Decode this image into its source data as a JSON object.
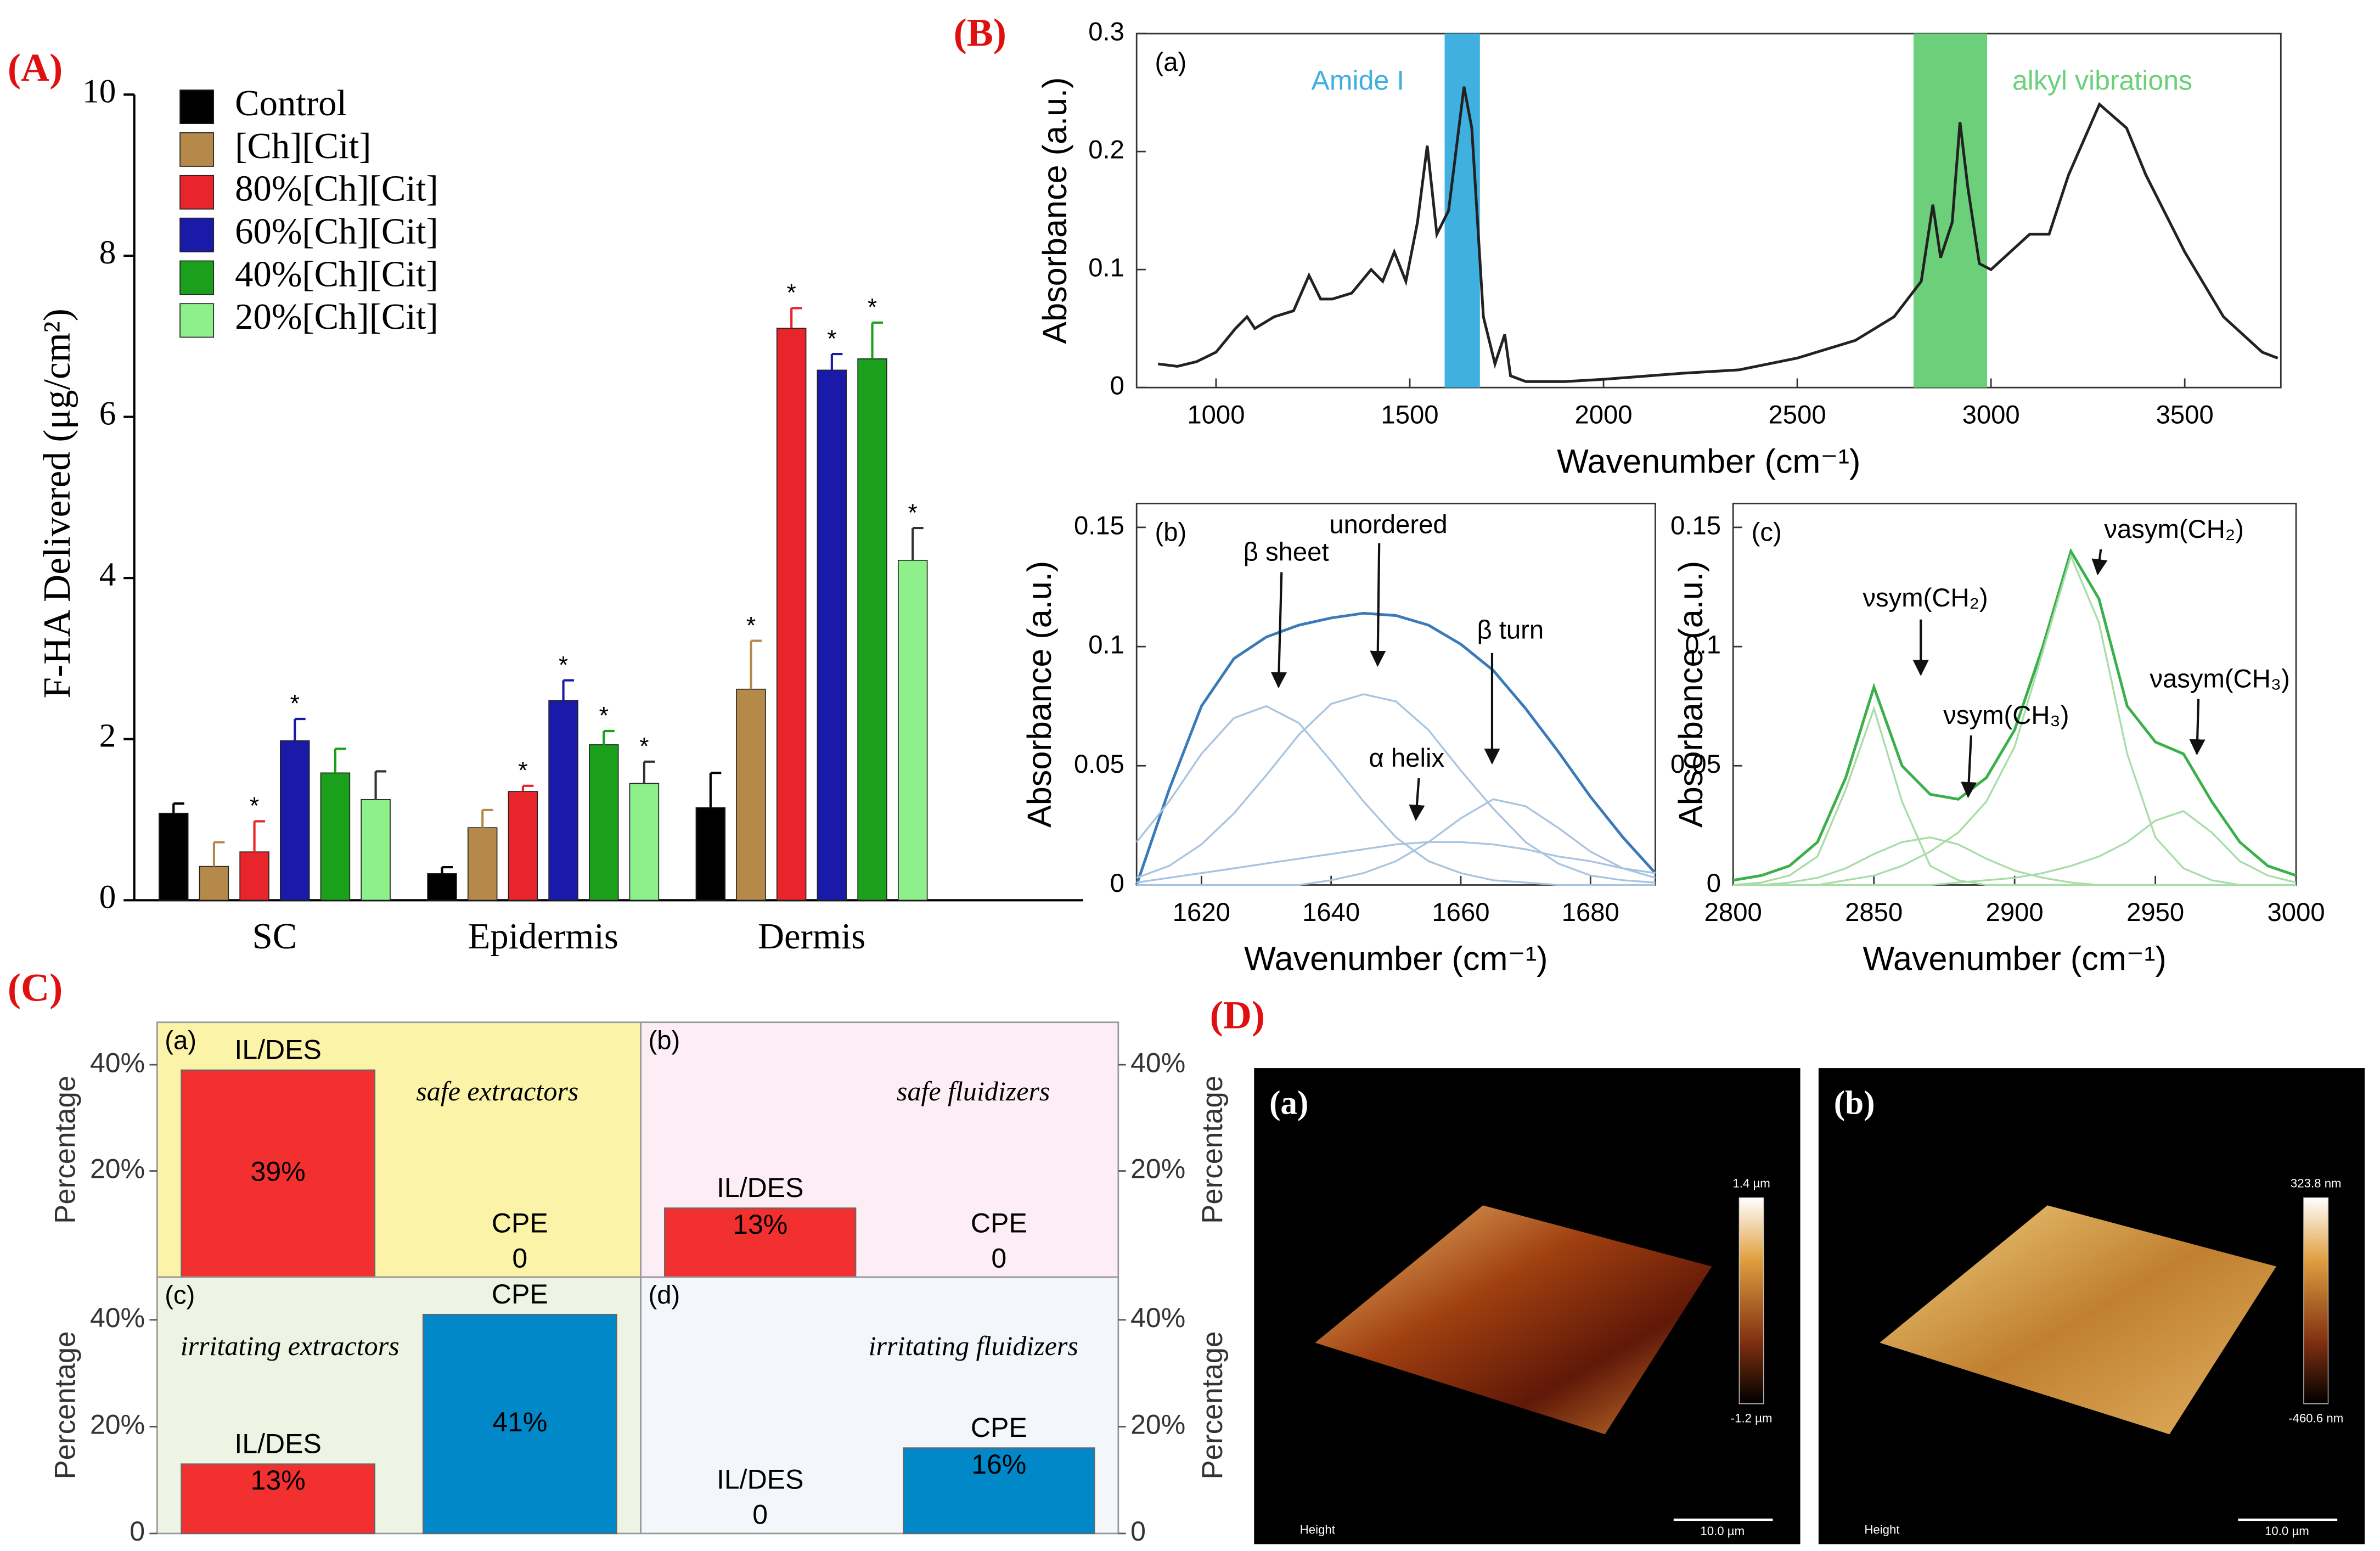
{
  "panel_labels": [
    "(A)",
    "(B)",
    "(C)",
    "(D)"
  ],
  "chart_data": [
    {
      "type": "bar",
      "y_label": "F-HA Delivered (μg/cm²)",
      "categories": [
        "SC",
        "Epidermis",
        "Dermis"
      ],
      "ylim": [
        0,
        10
      ],
      "yticks": [
        0,
        2,
        4,
        6,
        8,
        10
      ],
      "series": [
        {
          "name": "Control",
          "color": "#000000",
          "values": [
            1.08,
            0.33,
            1.15
          ],
          "errors": [
            0.12,
            0.08,
            0.43
          ],
          "significance": [
            null,
            null,
            null
          ]
        },
        {
          "name": "[Ch][Cit]",
          "color": "#b5894a",
          "values": [
            0.42,
            0.9,
            2.62
          ],
          "errors": [
            0.3,
            0.22,
            0.6
          ],
          "significance": [
            null,
            null,
            "*"
          ]
        },
        {
          "name": "80%[Ch][Cit]",
          "color": "#e8252a",
          "values": [
            0.6,
            1.35,
            7.1
          ],
          "errors": [
            0.38,
            0.07,
            0.25
          ],
          "significance": [
            "*",
            "*",
            "*"
          ]
        },
        {
          "name": "60%[Ch][Cit]",
          "color": "#1a1aa8",
          "values": [
            1.98,
            2.48,
            6.58
          ],
          "errors": [
            0.27,
            0.25,
            0.2
          ],
          "significance": [
            "*",
            "*",
            "*"
          ]
        },
        {
          "name": "40%[Ch][Cit]",
          "color": "#1aa01a",
          "values": [
            1.58,
            1.93,
            6.72
          ],
          "errors": [
            0.3,
            0.17,
            0.45
          ],
          "significance": [
            null,
            "*",
            "*"
          ]
        },
        {
          "name": "20%[Ch][Cit]",
          "color": "#8ef08a",
          "values": [
            1.25,
            1.45,
            4.22
          ],
          "errors": [
            0.35,
            0.27,
            0.4
          ],
          "significance": [
            null,
            "*",
            "*"
          ]
        }
      ]
    },
    {
      "type": "line",
      "tag": "(a)",
      "x_label": "Wavenumber (cm⁻¹)",
      "y_label": "Absorbance (a.u.)",
      "xlim": [
        795,
        3748
      ],
      "ylim": [
        0,
        0.3
      ],
      "xticks": [
        1000,
        1500,
        2000,
        2500,
        3000,
        3500
      ],
      "yticks": [
        0,
        0.1,
        0.2,
        0.3
      ],
      "bands": [
        {
          "label": "Amide I",
          "range": [
            1590,
            1681
          ],
          "color": "#3fb0e0"
        },
        {
          "label": "alkyl vibrations",
          "range": [
            2800,
            2990
          ],
          "color": "#6ccf7a"
        }
      ],
      "x": [
        850,
        900,
        950,
        1000,
        1050,
        1080,
        1100,
        1150,
        1200,
        1240,
        1270,
        1300,
        1350,
        1400,
        1430,
        1460,
        1490,
        1520,
        1545,
        1570,
        1600,
        1640,
        1660,
        1690,
        1720,
        1745,
        1760,
        1800,
        1900,
        2000,
        2200,
        2350,
        2500,
        2650,
        2750,
        2820,
        2850,
        2870,
        2900,
        2920,
        2940,
        2970,
        3000,
        3050,
        3100,
        3150,
        3200,
        3280,
        3350,
        3400,
        3500,
        3600,
        3700,
        3740
      ],
      "series": [
        {
          "color": "#222222",
          "values": [
            0.02,
            0.018,
            0.022,
            0.03,
            0.05,
            0.06,
            0.05,
            0.06,
            0.065,
            0.095,
            0.075,
            0.075,
            0.08,
            0.1,
            0.09,
            0.115,
            0.09,
            0.14,
            0.205,
            0.13,
            0.15,
            0.255,
            0.22,
            0.06,
            0.02,
            0.045,
            0.01,
            0.005,
            0.005,
            0.007,
            0.012,
            0.015,
            0.025,
            0.04,
            0.06,
            0.09,
            0.155,
            0.11,
            0.14,
            0.225,
            0.17,
            0.105,
            0.1,
            0.115,
            0.13,
            0.13,
            0.18,
            0.24,
            0.22,
            0.18,
            0.115,
            0.06,
            0.03,
            0.025
          ]
        }
      ]
    },
    {
      "type": "line",
      "tag": "(b)",
      "x_label": "Wavenumber (cm⁻¹)",
      "y_label": "Absorbance (a.u.)",
      "xlim": [
        1610,
        1690
      ],
      "ylim": [
        0,
        0.16
      ],
      "xticks": [
        1620,
        1640,
        1660,
        1680
      ],
      "yticks": [
        0,
        0.05,
        0.1,
        0.15
      ],
      "annotations": [
        "β sheet",
        "unordered",
        "β turn",
        "α helix"
      ],
      "x": [
        1610,
        1615,
        1620,
        1625,
        1630,
        1635,
        1640,
        1645,
        1650,
        1655,
        1660,
        1665,
        1670,
        1675,
        1680,
        1685,
        1690
      ],
      "series": [
        {
          "color": "#3a7ab8",
          "values": [
            0.0,
            0.04,
            0.075,
            0.095,
            0.104,
            0.109,
            0.112,
            0.114,
            0.113,
            0.109,
            0.101,
            0.09,
            0.074,
            0.056,
            0.037,
            0.02,
            0.005
          ]
        },
        {
          "color": "#a8c4e0",
          "values": [
            0.018,
            0.035,
            0.055,
            0.07,
            0.075,
            0.068,
            0.052,
            0.035,
            0.02,
            0.01,
            0.005,
            0.002,
            0.001,
            0,
            0,
            0,
            0
          ]
        },
        {
          "color": "#a8c4e0",
          "values": [
            0.003,
            0.008,
            0.017,
            0.03,
            0.046,
            0.063,
            0.076,
            0.08,
            0.077,
            0.065,
            0.048,
            0.032,
            0.018,
            0.009,
            0.004,
            0.002,
            0.001
          ]
        },
        {
          "color": "#a8c4e0",
          "values": [
            0,
            0,
            0,
            0,
            0,
            0,
            0.002,
            0.005,
            0.01,
            0.018,
            0.028,
            0.036,
            0.033,
            0.024,
            0.014,
            0.007,
            0.003
          ]
        },
        {
          "color": "#a8c4e0",
          "values": [
            0.001,
            0.003,
            0.005,
            0.007,
            0.009,
            0.011,
            0.013,
            0.015,
            0.017,
            0.018,
            0.018,
            0.017,
            0.015,
            0.012,
            0.01,
            0.007,
            0.005
          ]
        }
      ]
    },
    {
      "type": "line",
      "tag": "(c)",
      "x_label": "Wavenumber (cm⁻¹)",
      "y_label": "Absorbance (a.u.)",
      "xlim": [
        2800,
        3000
      ],
      "ylim": [
        0,
        0.16
      ],
      "xticks": [
        2800,
        2850,
        2900,
        2950,
        3000
      ],
      "yticks": [
        0,
        0.05,
        0.1,
        0.15
      ],
      "annotations": [
        "νsym(CH₂)",
        "νsym(CH₃)",
        "νasym(CH₂)",
        "νasym(CH₃)"
      ],
      "x": [
        2800,
        2810,
        2820,
        2830,
        2840,
        2850,
        2860,
        2870,
        2880,
        2890,
        2900,
        2910,
        2920,
        2930,
        2940,
        2950,
        2960,
        2970,
        2980,
        2990,
        3000
      ],
      "series": [
        {
          "color": "#3ab04a",
          "values": [
            0.002,
            0.004,
            0.008,
            0.018,
            0.045,
            0.083,
            0.05,
            0.038,
            0.036,
            0.045,
            0.065,
            0.1,
            0.14,
            0.12,
            0.075,
            0.06,
            0.055,
            0.035,
            0.018,
            0.008,
            0.004
          ]
        },
        {
          "color": "#a8dca8",
          "values": [
            0,
            0.001,
            0.004,
            0.012,
            0.04,
            0.074,
            0.035,
            0.008,
            0.002,
            0,
            0,
            0,
            0,
            0,
            0,
            0,
            0,
            0,
            0,
            0,
            0
          ]
        },
        {
          "color": "#a8dca8",
          "values": [
            0,
            0,
            0.001,
            0.003,
            0.007,
            0.013,
            0.018,
            0.02,
            0.017,
            0.011,
            0.006,
            0.003,
            0.001,
            0,
            0,
            0,
            0,
            0,
            0,
            0,
            0
          ]
        },
        {
          "color": "#a8dca8",
          "values": [
            0,
            0,
            0,
            0,
            0.002,
            0.004,
            0.008,
            0.014,
            0.022,
            0.035,
            0.058,
            0.098,
            0.138,
            0.11,
            0.055,
            0.02,
            0.007,
            0.002,
            0,
            0,
            0
          ]
        },
        {
          "color": "#a8dca8",
          "values": [
            0,
            0,
            0,
            0,
            0,
            0,
            0,
            0,
            0.001,
            0.002,
            0.003,
            0.005,
            0.008,
            0.012,
            0.018,
            0.027,
            0.031,
            0.022,
            0.01,
            0.004,
            0.001
          ]
        }
      ]
    },
    {
      "type": "bar",
      "tag": "(a)",
      "title": "safe extractors",
      "y_label": "Percentage",
      "background": "#faf3a8",
      "categories": [
        "IL/DES",
        "CPE"
      ],
      "values": [
        39,
        0
      ],
      "value_labels": [
        "39%",
        "0"
      ],
      "colors": [
        "#f23030",
        "#0088c8"
      ],
      "ylim": [
        0,
        48
      ],
      "yticks": [
        {
          "value": 20,
          "label": "20%"
        },
        {
          "value": 40,
          "label": "40%"
        }
      ]
    },
    {
      "type": "bar",
      "tag": "(b)",
      "title": "safe fluidizers",
      "y_label": "Percentage",
      "background": "#fdeef5",
      "categories": [
        "IL/DES",
        "CPE"
      ],
      "values": [
        13,
        0
      ],
      "value_labels": [
        "13%",
        "0"
      ],
      "colors": [
        "#f23030",
        "#0088c8"
      ],
      "ylim": [
        0,
        48
      ],
      "yticks": [
        {
          "value": 20,
          "label": "20%"
        },
        {
          "value": 40,
          "label": "40%"
        }
      ]
    },
    {
      "type": "bar",
      "tag": "(c)",
      "title": "irritating extractors",
      "y_label": "Percentage",
      "background": "#eef4e4",
      "categories": [
        "IL/DES",
        "CPE"
      ],
      "values": [
        13,
        41
      ],
      "value_labels": [
        "13%",
        "41%"
      ],
      "colors": [
        "#f23030",
        "#0088c8"
      ],
      "ylim": [
        0,
        48
      ],
      "yticks": [
        0,
        {
          "value": 20,
          "label": "20%"
        },
        {
          "value": 40,
          "label": "40%"
        }
      ]
    },
    {
      "type": "bar",
      "tag": "(d)",
      "title": "irritating fluidizers",
      "y_label": "Percentage",
      "background": "#f3f7fb",
      "categories": [
        "IL/DES",
        "CPE"
      ],
      "values": [
        0,
        16
      ],
      "value_labels": [
        "0",
        "16%"
      ],
      "colors": [
        "#f23030",
        "#0088c8"
      ],
      "ylim": [
        0,
        48
      ],
      "yticks": [
        0,
        {
          "value": 20,
          "label": "20%"
        },
        {
          "value": 40,
          "label": "40%"
        }
      ]
    }
  ],
  "images": [
    {
      "tag": "(a)",
      "scale_max": "1.4 µm",
      "scale_min": "-1.2 µm",
      "caption": "Height",
      "scalebar": "10.0 µm"
    },
    {
      "tag": "(b)",
      "scale_max": "323.8 nm",
      "scale_min": "-460.6 nm",
      "caption": "Height",
      "scalebar": "10.0 µm"
    }
  ]
}
